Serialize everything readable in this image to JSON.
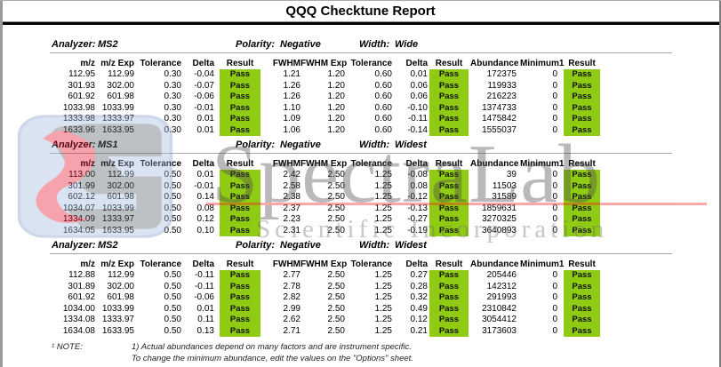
{
  "title": "QQQ Checktune Report",
  "labels": {
    "analyzer": "Analyzer:",
    "polarity": "Polarity:",
    "width": "Width:"
  },
  "columns": [
    "m/z",
    "m/z Exp",
    "Tolerance",
    "Delta",
    "Result",
    "FWHM",
    "FWHM Exp",
    "Tolerance",
    "Delta",
    "Result",
    "Abundance",
    "Minimum1",
    "Result"
  ],
  "sections": [
    {
      "analyzer": "MS2",
      "polarity": "Negative",
      "width": "Wide",
      "rows": [
        [
          "112.95",
          "112.99",
          "0.30",
          "-0.04",
          "Pass",
          "1.21",
          "1.20",
          "0.60",
          "0.01",
          "Pass",
          "172375",
          "0",
          "Pass"
        ],
        [
          "301.93",
          "302.00",
          "0.30",
          "-0.07",
          "Pass",
          "1.26",
          "1.20",
          "0.60",
          "0.06",
          "Pass",
          "119933",
          "0",
          "Pass"
        ],
        [
          "601.92",
          "601.98",
          "0.30",
          "-0.06",
          "Pass",
          "1.26",
          "1.20",
          "0.60",
          "0.06",
          "Pass",
          "216223",
          "0",
          "Pass"
        ],
        [
          "1033.98",
          "1033.99",
          "0.30",
          "-0.01",
          "Pass",
          "1.10",
          "1.20",
          "0.60",
          "-0.10",
          "Pass",
          "1374733",
          "0",
          "Pass"
        ],
        [
          "1333.98",
          "1333.97",
          "0.30",
          "0.01",
          "Pass",
          "1.09",
          "1.20",
          "0.60",
          "-0.11",
          "Pass",
          "1475842",
          "0",
          "Pass"
        ],
        [
          "1633.96",
          "1633.95",
          "0.30",
          "0.01",
          "Pass",
          "1.06",
          "1.20",
          "0.60",
          "-0.14",
          "Pass",
          "1555037",
          "0",
          "Pass"
        ]
      ]
    },
    {
      "analyzer": "MS1",
      "polarity": "Negative",
      "width": "Widest",
      "rows": [
        [
          "113.00",
          "112.99",
          "0.50",
          "0.01",
          "Pass",
          "2.42",
          "2.50",
          "1.25",
          "-0.08",
          "Pass",
          "39",
          "0",
          "Pass"
        ],
        [
          "301.99",
          "302.00",
          "0.50",
          "-0.01",
          "Pass",
          "2.58",
          "2.50",
          "1.25",
          "0.08",
          "Pass",
          "11503",
          "0",
          "Pass"
        ],
        [
          "602.12",
          "601.98",
          "0.50",
          "0.14",
          "Pass",
          "2.38",
          "2.50",
          "1.25",
          "-0.12",
          "Pass",
          "31589",
          "0",
          "Pass"
        ],
        [
          "1034.07",
          "1033.99",
          "0.50",
          "0.08",
          "Pass",
          "2.37",
          "2.50",
          "1.25",
          "-0.13",
          "Pass",
          "1859631",
          "0",
          "Pass"
        ],
        [
          "1334.09",
          "1333.97",
          "0.50",
          "0.12",
          "Pass",
          "2.23",
          "2.50",
          "1.25",
          "-0.27",
          "Pass",
          "3270325",
          "0",
          "Pass"
        ],
        [
          "1634.05",
          "1633.95",
          "0.50",
          "0.10",
          "Pass",
          "2.31",
          "2.50",
          "1.25",
          "-0.19",
          "Pass",
          "3640893",
          "0",
          "Pass"
        ]
      ]
    },
    {
      "analyzer": "MS2",
      "polarity": "Negative",
      "width": "Widest",
      "rows": [
        [
          "112.88",
          "112.99",
          "0.50",
          "-0.11",
          "Pass",
          "2.77",
          "2.50",
          "1.25",
          "0.27",
          "Pass",
          "205446",
          "0",
          "Pass"
        ],
        [
          "301.89",
          "302.00",
          "0.50",
          "-0.11",
          "Pass",
          "2.78",
          "2.50",
          "1.25",
          "0.28",
          "Pass",
          "142312",
          "0",
          "Pass"
        ],
        [
          "601.92",
          "601.98",
          "0.50",
          "-0.06",
          "Pass",
          "2.82",
          "2.50",
          "1.25",
          "0.32",
          "Pass",
          "291993",
          "0",
          "Pass"
        ],
        [
          "1034.00",
          "1033.99",
          "0.50",
          "0.01",
          "Pass",
          "2.99",
          "2.50",
          "1.25",
          "0.49",
          "Pass",
          "2310842",
          "0",
          "Pass"
        ],
        [
          "1334.08",
          "1333.97",
          "0.50",
          "0.11",
          "Pass",
          "2.62",
          "2.50",
          "1.25",
          "0.12",
          "Pass",
          "3054412",
          "0",
          "Pass"
        ],
        [
          "1634.08",
          "1633.95",
          "0.50",
          "0.13",
          "Pass",
          "2.71",
          "2.50",
          "1.25",
          "0.21",
          "Pass",
          "3173603",
          "0",
          "Pass"
        ]
      ]
    }
  ],
  "note": {
    "label": "¹ NOTE:",
    "line1": "1) Actual abundances depend on many factors and are instrument specific.",
    "line2": "To change the minimum abundance, edit the values on the \"Options\" sheet."
  },
  "watermark": {
    "brand": "SpectraLab",
    "subtitle": "Scientific Incorporation"
  },
  "colors": {
    "pass_green": "#8FCB12",
    "watermark_red": "#FF1A1A",
    "logo_blue": "#9DB8DC"
  }
}
